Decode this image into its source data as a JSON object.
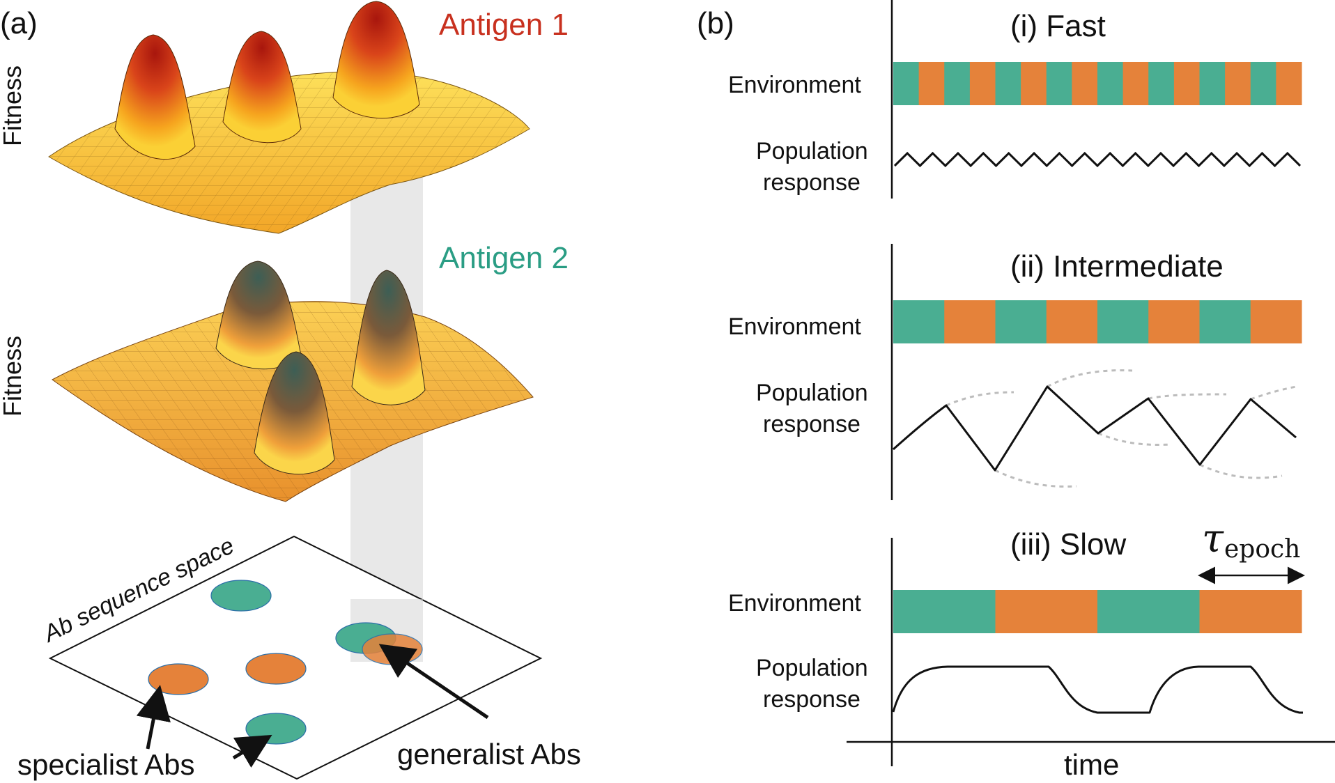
{
  "panel_a": {
    "label": "(a)",
    "antigen1_label": "Antigen 1",
    "antigen2_label": "Antigen 2",
    "fitness_label_top": "Fitness",
    "fitness_label_mid": "Fitness",
    "sequence_space_label": "Ab sequence space",
    "specialist_label": "specialist Abs",
    "generalist_label": "generalist Abs"
  },
  "panel_b": {
    "label": "(b)",
    "fast_title": "(i) Fast",
    "intermediate_title": "(ii) Intermediate",
    "slow_title": "(iii) Slow",
    "environment_label": "Environment",
    "population_label_line1": "Population",
    "population_label_line2": "response",
    "tau_symbol": "τ",
    "tau_subscript": "epoch",
    "time_label": "time"
  },
  "colors": {
    "antigen1": "#c8301e",
    "antigen2": "#2a9d84",
    "env_teal": "#4aae92",
    "env_orange": "#e5823a",
    "dashed": "#bcbcbc"
  }
}
